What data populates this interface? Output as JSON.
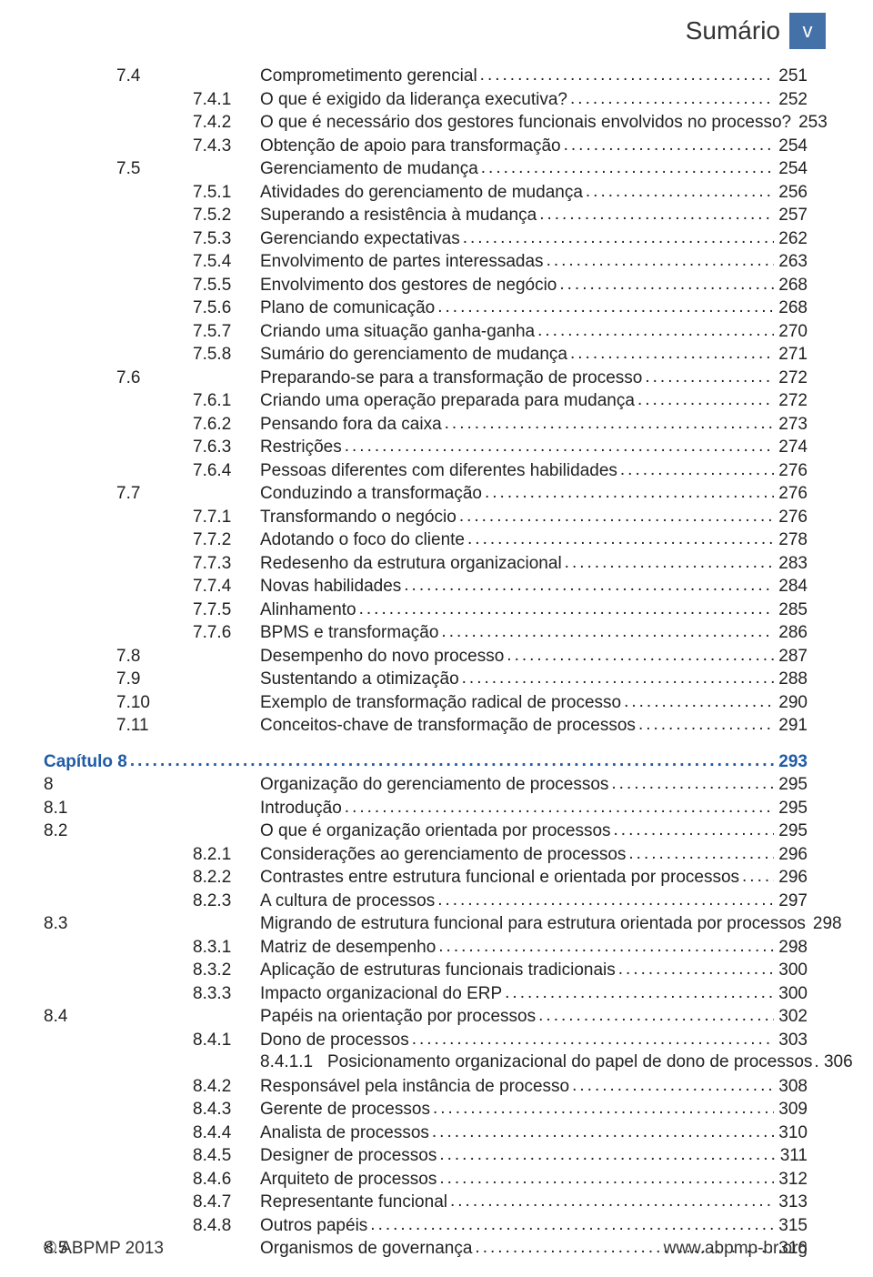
{
  "header": {
    "text": "Sumário",
    "badge": "v"
  },
  "footer": {
    "left": "© ABPMP 2013",
    "right": "www.abpmp-br.org"
  },
  "rows": [
    {
      "c1": "",
      "c2": "7.4",
      "c3": "",
      "label": "Comprometimento gerencial",
      "pg": "251"
    },
    {
      "c1": "",
      "c2": "",
      "c3": "7.4.1",
      "label": "O que é exigido da liderança executiva?",
      "pg": "252"
    },
    {
      "c1": "",
      "c2": "",
      "c3": "7.4.2",
      "label": "O que é necessário dos gestores funcionais envolvidos no processo?",
      "pg": "253"
    },
    {
      "c1": "",
      "c2": "",
      "c3": "7.4.3",
      "label": "Obtenção de apoio para transformação",
      "pg": "254"
    },
    {
      "c1": "",
      "c2": "7.5",
      "c3": "",
      "label": "Gerenciamento de mudança",
      "pg": "254"
    },
    {
      "c1": "",
      "c2": "",
      "c3": "7.5.1",
      "label": "Atividades do gerenciamento de mudança",
      "pg": "256"
    },
    {
      "c1": "",
      "c2": "",
      "c3": "7.5.2",
      "label": "Superando a resistência à mudança",
      "pg": "257"
    },
    {
      "c1": "",
      "c2": "",
      "c3": "7.5.3",
      "label": "Gerenciando expectativas",
      "pg": "262"
    },
    {
      "c1": "",
      "c2": "",
      "c3": "7.5.4",
      "label": "Envolvimento de partes interessadas",
      "pg": "263"
    },
    {
      "c1": "",
      "c2": "",
      "c3": "7.5.5",
      "label": "Envolvimento dos gestores de negócio",
      "pg": "268"
    },
    {
      "c1": "",
      "c2": "",
      "c3": "7.5.6",
      "label": "Plano de comunicação",
      "pg": "268"
    },
    {
      "c1": "",
      "c2": "",
      "c3": "7.5.7",
      "label": "Criando uma situação ganha-ganha",
      "pg": "270"
    },
    {
      "c1": "",
      "c2": "",
      "c3": "7.5.8",
      "label": "Sumário do gerenciamento de mudança",
      "pg": "271"
    },
    {
      "c1": "",
      "c2": "7.6",
      "c3": "",
      "label": "Preparando-se para a transformação de processo",
      "pg": "272"
    },
    {
      "c1": "",
      "c2": "",
      "c3": "7.6.1",
      "label": "Criando uma operação preparada para mudança",
      "pg": "272"
    },
    {
      "c1": "",
      "c2": "",
      "c3": "7.6.2",
      "label": "Pensando fora da caixa",
      "pg": "273"
    },
    {
      "c1": "",
      "c2": "",
      "c3": "7.6.3",
      "label": "Restrições",
      "pg": "274"
    },
    {
      "c1": "",
      "c2": "",
      "c3": "7.6.4",
      "label": "Pessoas diferentes com diferentes habilidades",
      "pg": "276"
    },
    {
      "c1": "",
      "c2": "7.7",
      "c3": "",
      "label": "Conduzindo a transformação",
      "pg": "276"
    },
    {
      "c1": "",
      "c2": "",
      "c3": "7.7.1",
      "label": "Transformando o negócio",
      "pg": "276"
    },
    {
      "c1": "",
      "c2": "",
      "c3": "7.7.2",
      "label": "Adotando o foco do cliente",
      "pg": "278"
    },
    {
      "c1": "",
      "c2": "",
      "c3": "7.7.3",
      "label": "Redesenho da estrutura organizacional",
      "pg": "283"
    },
    {
      "c1": "",
      "c2": "",
      "c3": "7.7.4",
      "label": "Novas habilidades",
      "pg": "284"
    },
    {
      "c1": "",
      "c2": "",
      "c3": "7.7.5",
      "label": "Alinhamento",
      "pg": "285"
    },
    {
      "c1": "",
      "c2": "",
      "c3": "7.7.6",
      "label": "BPMS e transformação",
      "pg": "286"
    },
    {
      "c1": "",
      "c2": "7.8",
      "c3": "",
      "label": "Desempenho do novo processo",
      "pg": "287"
    },
    {
      "c1": "",
      "c2": "7.9",
      "c3": "",
      "label": "Sustentando a otimização",
      "pg": "288"
    },
    {
      "c1": "",
      "c2": "7.10",
      "c3": "",
      "label": "Exemplo de transformação radical de processo",
      "pg": "290"
    },
    {
      "c1": "",
      "c2": "7.11",
      "c3": "",
      "label": "Conceitos-chave de transformação de processos",
      "pg": "291"
    },
    {
      "chapter": true,
      "c1": "",
      "c2": "",
      "c3": "",
      "label": "Capítulo 8",
      "pg": "293"
    },
    {
      "c1": "8",
      "c2": "",
      "c3": "",
      "label": "Organização do gerenciamento de processos",
      "pg": "295"
    },
    {
      "c1": "8.1",
      "c2": "",
      "c3": "",
      "label": "Introdução",
      "pg": "295"
    },
    {
      "c1": "8.2",
      "c2": "",
      "c3": "",
      "label": "O que é organização orientada por processos",
      "pg": "295"
    },
    {
      "c1": "",
      "c2": "",
      "c3": "8.2.1",
      "label": "Considerações ao gerenciamento de processos",
      "pg": "296"
    },
    {
      "c1": "",
      "c2": "",
      "c3": "8.2.2",
      "label": "Contrastes entre estrutura funcional e orientada por processos",
      "pg": "296"
    },
    {
      "c1": "",
      "c2": "",
      "c3": "8.2.3",
      "label": "A cultura de processos",
      "pg": "297"
    },
    {
      "c1": "8.3",
      "c2": "",
      "c3": "",
      "label": "Migrando de estrutura funcional para estrutura orientada por processos",
      "pg": "298"
    },
    {
      "c1": "",
      "c2": "",
      "c3": "8.3.1",
      "label": "Matriz de desempenho",
      "pg": "298"
    },
    {
      "c1": "",
      "c2": "",
      "c3": "8.3.2",
      "label": "Aplicação de estruturas funcionais tradicionais",
      "pg": "300"
    },
    {
      "c1": "",
      "c2": "",
      "c3": "8.3.3",
      "label": "Impacto organizacional do ERP",
      "pg": "300"
    },
    {
      "c1": "8.4",
      "c2": "",
      "c3": "",
      "label": "Papéis na orientação por processos",
      "pg": "302"
    },
    {
      "c1": "",
      "c2": "",
      "c3": "8.4.1",
      "label": "Dono de processos",
      "pg": "303"
    },
    {
      "col4": true,
      "c4": "8.4.1.1",
      "label": "Posicionamento organizacional do papel de dono de processos",
      "pg": ". 306",
      "nodots": true
    },
    {
      "c1": "",
      "c2": "",
      "c3": "8.4.2",
      "label": "Responsável pela instância de processo",
      "pg": "308"
    },
    {
      "c1": "",
      "c2": "",
      "c3": "8.4.3",
      "label": "Gerente de processos",
      "pg": "309"
    },
    {
      "c1": "",
      "c2": "",
      "c3": "8.4.4",
      "label": "Analista de processos",
      "pg": "310"
    },
    {
      "c1": "",
      "c2": "",
      "c3": "8.4.5",
      "label": "Designer de processos",
      "pg": "311"
    },
    {
      "c1": "",
      "c2": "",
      "c3": "8.4.6",
      "label": "Arquiteto de processos",
      "pg": "312"
    },
    {
      "c1": "",
      "c2": "",
      "c3": "8.4.7",
      "label": "Representante funcional",
      "pg": "313"
    },
    {
      "c1": "",
      "c2": "",
      "c3": "8.4.8",
      "label": "Outros papéis",
      "pg": "315"
    },
    {
      "c1": "8.5",
      "c2": "",
      "c3": "",
      "label": "Organismos de governança",
      "pg": "316"
    }
  ]
}
